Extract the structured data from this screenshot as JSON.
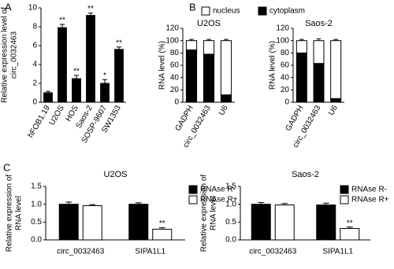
{
  "chart_data": [
    {
      "type": "bar",
      "panel": "A",
      "ylabel": [
        "Relative expression level of",
        "circ_0032463"
      ],
      "categories": [
        "hFOB1.19",
        "U2OS",
        "HOS",
        "Saos-2",
        "SOSP-9607",
        "SW1353"
      ],
      "values": [
        1.0,
        7.9,
        2.5,
        9.2,
        2.0,
        5.6
      ],
      "errors": [
        0.15,
        0.35,
        0.35,
        0.25,
        0.4,
        0.25
      ],
      "annotations": [
        null,
        "**",
        "**",
        "**",
        "*",
        "**"
      ],
      "color": "#000000",
      "ylim": [
        0,
        10
      ],
      "yticks": [
        0,
        2,
        4,
        6,
        8,
        10
      ],
      "xlabel_rotation": 60
    },
    {
      "type": "stacked_bar",
      "panel": "B",
      "title": "U2OS",
      "ylabel": [
        "RNA level (%)"
      ],
      "categories": [
        "GADPH",
        "circ_0032463",
        "U6"
      ],
      "series": [
        {
          "name": "cytoplasm",
          "color": "#000000",
          "values": [
            85,
            78,
            12
          ],
          "errors": [
            3,
            6,
            3
          ]
        },
        {
          "name": "nucleus",
          "color": "#ffffff",
          "values": [
            15,
            22,
            88
          ],
          "errors": [
            2,
            2,
            2
          ]
        }
      ],
      "ylim": [
        0,
        120
      ],
      "yticks": [
        0,
        20,
        40,
        60,
        80,
        100,
        120
      ],
      "xlabel_rotation": 60,
      "legend": "top"
    },
    {
      "type": "stacked_bar",
      "title": "Saos-2",
      "ylabel": [
        "RNA level (%)"
      ],
      "categories": [
        "GADPH",
        "circ_0032463",
        "U6"
      ],
      "series": [
        {
          "name": "cytoplasm",
          "color": "#000000",
          "values": [
            80,
            63,
            6
          ],
          "errors": [
            7,
            5,
            1
          ]
        },
        {
          "name": "nucleus",
          "color": "#ffffff",
          "values": [
            20,
            37,
            94
          ],
          "errors": [
            2,
            3,
            2
          ]
        }
      ],
      "ylim": [
        0,
        120
      ],
      "yticks": [
        0,
        20,
        40,
        60,
        80,
        100,
        120
      ],
      "xlabel_rotation": 60
    },
    {
      "type": "grouped_bar",
      "panel": "C",
      "title": "U2OS",
      "ylabel": [
        "Relative expression of",
        "RNA level"
      ],
      "categories": [
        "circ_0032463",
        "SIPA1L1"
      ],
      "series": [
        {
          "name": "RNAse R-",
          "color": "#000000",
          "values": [
            1.0,
            1.0
          ],
          "errors": [
            0.06,
            0.04
          ]
        },
        {
          "name": "RNAse R+",
          "color": "#ffffff",
          "values": [
            0.96,
            0.3
          ],
          "errors": [
            0.03,
            0.04
          ],
          "annotations": [
            null,
            "**"
          ]
        }
      ],
      "ylim": [
        0,
        1.5
      ],
      "yticks": [
        {
          "value": 0,
          "label": "0.0"
        },
        {
          "value": 0.5,
          "label": "0.5"
        },
        {
          "value": 1,
          "label": "1.0"
        },
        {
          "value": 1.5,
          "label": "1.5"
        }
      ],
      "legend": "right"
    },
    {
      "type": "grouped_bar",
      "title": "Saos-2",
      "ylabel": [
        "Relative expression of",
        "RNA level"
      ],
      "categories": [
        "circ_0032463",
        "SIPA1L1"
      ],
      "series": [
        {
          "name": "RNAse R-",
          "color": "#000000",
          "values": [
            1.0,
            0.98
          ],
          "errors": [
            0.05,
            0.05
          ]
        },
        {
          "name": "RNAse R+",
          "color": "#ffffff",
          "values": [
            0.98,
            0.32
          ],
          "errors": [
            0.04,
            0.04
          ],
          "annotations": [
            null,
            "**"
          ]
        }
      ],
      "ylim": [
        0,
        1.5
      ],
      "yticks": [
        {
          "value": 0,
          "label": "0.0"
        },
        {
          "value": 0.5,
          "label": "0.5"
        },
        {
          "value": 1,
          "label": "1.0"
        },
        {
          "value": 1.5,
          "label": "1.5"
        }
      ],
      "legend": "right"
    }
  ]
}
